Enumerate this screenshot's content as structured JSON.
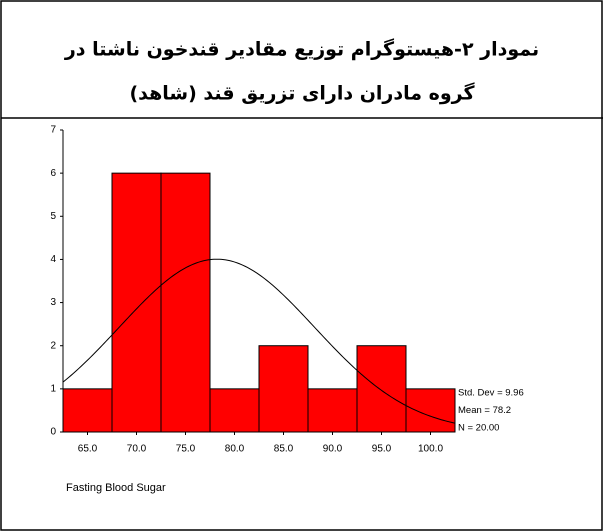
{
  "chart_data": {
    "type": "histogram",
    "title": [
      "نمودار ۲-هیستوگرام توزیع مقادیر قندخون ناشتا در",
      "گروه مادران دارای تزریق قند (شاهد)"
    ],
    "x_label": "Fasting Blood Sugar",
    "bins": [
      62.5,
      67.5,
      72.5,
      77.5,
      82.5,
      87.5,
      92.5,
      97.5,
      102.5
    ],
    "counts": [
      1,
      6,
      6,
      1,
      2,
      1,
      2,
      1
    ],
    "color": "#ff0000",
    "curve_color": "#000000",
    "normal_curve": {
      "mean": 78.2,
      "std": 9.96,
      "n": 20
    },
    "annotations": [
      "Std. Dev = 9.96",
      "Mean = 78.2",
      "N = 20.00"
    ],
    "xlim": [
      62.5,
      102.5
    ],
    "xticks": [
      {
        "value": 65,
        "label": "65.0"
      },
      {
        "value": 70,
        "label": "70.0"
      },
      {
        "value": 75,
        "label": "75.0"
      },
      {
        "value": 80,
        "label": "80.0"
      },
      {
        "value": 85,
        "label": "85.0"
      },
      {
        "value": 90,
        "label": "90.0"
      },
      {
        "value": 95,
        "label": "95.0"
      },
      {
        "value": 100,
        "label": "100.0"
      }
    ],
    "ylim": [
      0,
      7
    ],
    "yticks": [
      0,
      1,
      2,
      3,
      4,
      5,
      6,
      7
    ]
  }
}
